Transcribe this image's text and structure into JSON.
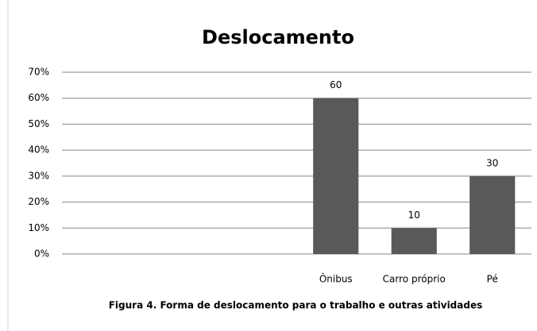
{
  "chart_data": {
    "type": "bar",
    "title": "Deslocamento",
    "caption": "Figura 4. Forma de deslocamento para o trabalho  e outras atividades",
    "categories": [
      null,
      null,
      null,
      "Ônibus",
      "Carro próprio",
      "Pé"
    ],
    "values": [
      null,
      null,
      null,
      60,
      10,
      30
    ],
    "color": "#595959",
    "ylim": [
      0,
      70
    ],
    "yticks": [
      {
        "value": 0,
        "label": "0%"
      },
      {
        "value": 10,
        "label": "10%"
      },
      {
        "value": 20,
        "label": "20%"
      },
      {
        "value": 30,
        "label": "30%"
      },
      {
        "value": 40,
        "label": "40%"
      },
      {
        "value": 50,
        "label": "50%"
      },
      {
        "value": 60,
        "label": "60%"
      },
      {
        "value": 70,
        "label": "70%"
      }
    ],
    "grid": true
  }
}
